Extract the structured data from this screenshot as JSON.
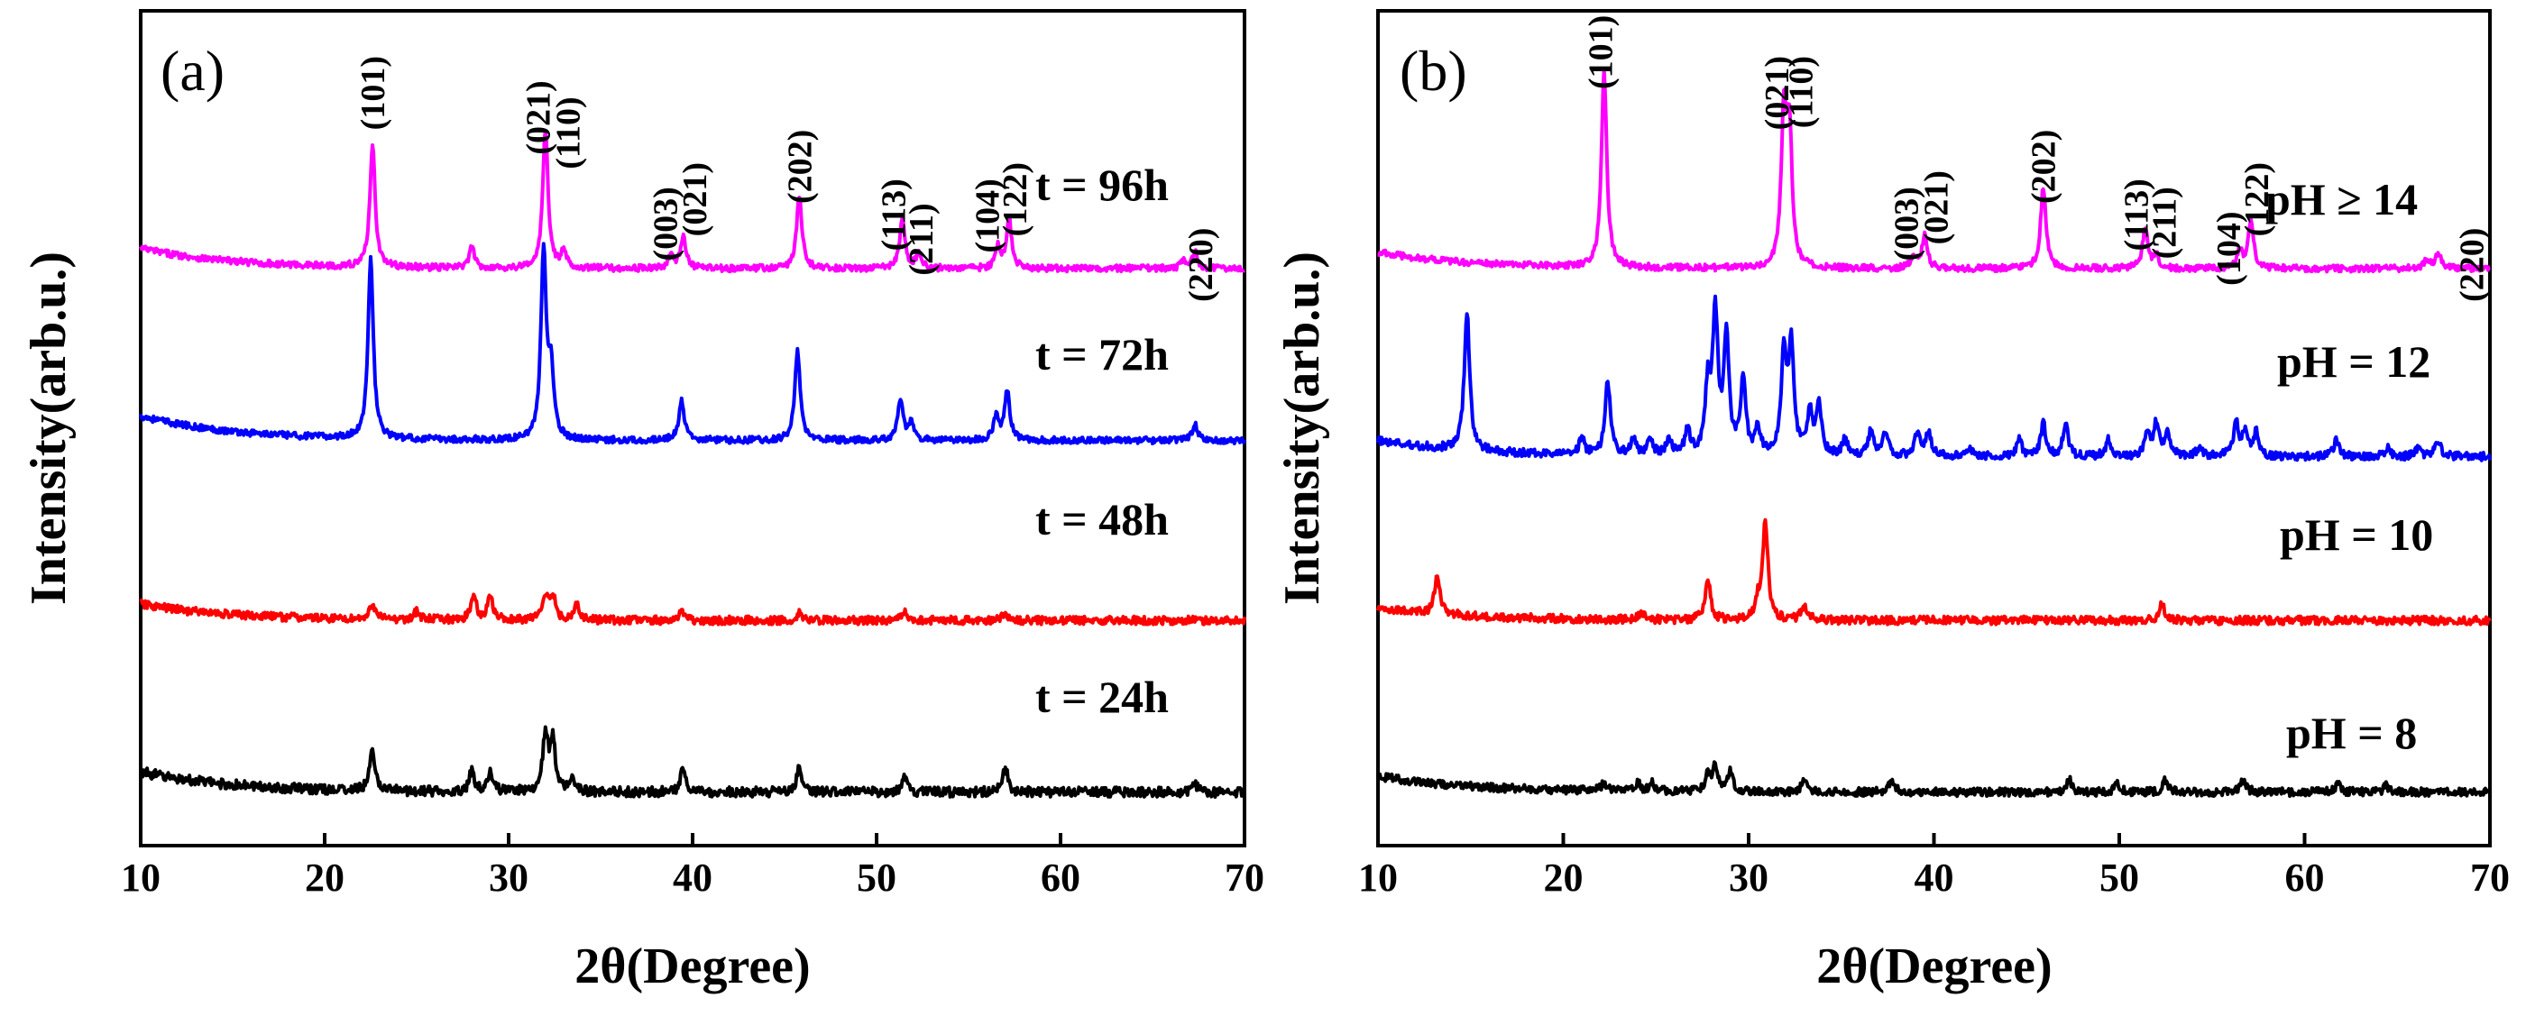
{
  "chart_data": [
    {
      "type": "line",
      "panel_label": "(a)",
      "xlabel": "2θ(Degree)",
      "ylabel": "Intensity(arb.u.)",
      "xlim": [
        10,
        70
      ],
      "ylim": [
        0,
        100
      ],
      "x_ticks": [
        "10",
        "20",
        "30",
        "40",
        "50",
        "60",
        "70"
      ],
      "series": [
        {
          "name": "t = 96h",
          "color": "#ff00ff",
          "baseline": 67,
          "slope": 2.5,
          "noise": 0.4,
          "peaks": [
            [
              22.6,
              15
            ],
            [
              28.0,
              2.5
            ],
            [
              32.0,
              17
            ],
            [
              33.0,
              2
            ],
            [
              38.8,
              1.5
            ],
            [
              39.5,
              4
            ],
            [
              45.8,
              9
            ],
            [
              51.4,
              6
            ],
            [
              52.3,
              2
            ],
            [
              56.6,
              2.5
            ],
            [
              57.2,
              6
            ],
            [
              66.7,
              1
            ],
            [
              67.3,
              2
            ]
          ]
        },
        {
          "name": "t = 72h",
          "color": "#0000ff",
          "baseline": 46,
          "slope": 3,
          "noise": 0.4,
          "peaks": [
            [
              22.5,
              22
            ],
            [
              31.9,
              23
            ],
            [
              32.3,
              8
            ],
            [
              39.4,
              5
            ],
            [
              45.7,
              11
            ],
            [
              51.3,
              5
            ],
            [
              51.9,
              2
            ],
            [
              56.5,
              3
            ],
            [
              57.1,
              6
            ],
            [
              67.3,
              2
            ]
          ]
        },
        {
          "name": "t = 48h",
          "color": "#ff0000",
          "baseline": 24,
          "slope": 2,
          "noise": 0.5,
          "peaks": [
            [
              22.6,
              2
            ],
            [
              25.0,
              1
            ],
            [
              28.1,
              3
            ],
            [
              29.0,
              3
            ],
            [
              32.0,
              3
            ],
            [
              32.4,
              3
            ],
            [
              33.7,
              2
            ],
            [
              39.4,
              1
            ],
            [
              45.8,
              1
            ],
            [
              51.5,
              1
            ],
            [
              57.0,
              1
            ]
          ]
        },
        {
          "name": "t = 24h",
          "color": "#000000",
          "baseline": 3,
          "slope": 2.5,
          "noise": 0.6,
          "peaks": [
            [
              22.6,
              5
            ],
            [
              28.0,
              2.5
            ],
            [
              29.0,
              2.5
            ],
            [
              32.0,
              7
            ],
            [
              32.4,
              6
            ],
            [
              33.5,
              1.5
            ],
            [
              39.5,
              3
            ],
            [
              45.8,
              3
            ],
            [
              51.5,
              2
            ],
            [
              57.0,
              3
            ],
            [
              67.3,
              1
            ]
          ]
        }
      ],
      "series_labels": [
        "t = 96h",
        "t = 72h",
        "t = 48h",
        "t = 24h"
      ],
      "annotations": [
        {
          "text": "(101)",
          "x": 22.6,
          "y": 93
        },
        {
          "text": "(021)",
          "x": 31.6,
          "y": 90
        },
        {
          "text": "(110)",
          "x": 33.2,
          "y": 88
        },
        {
          "text": "(003)",
          "x": 38.5,
          "y": 77
        },
        {
          "text": "(021)",
          "x": 40.1,
          "y": 80
        },
        {
          "text": "(202)",
          "x": 45.8,
          "y": 84
        },
        {
          "text": "(113)",
          "x": 50.9,
          "y": 78
        },
        {
          "text": "(211)",
          "x": 52.4,
          "y": 75
        },
        {
          "text": "(104)",
          "x": 56.0,
          "y": 78
        },
        {
          "text": "(122)",
          "x": 57.5,
          "y": 80
        },
        {
          "text": "(220)",
          "x": 67.6,
          "y": 72
        }
      ]
    },
    {
      "type": "line",
      "panel_label": "(b)",
      "xlabel": "2θ(Degree)",
      "ylabel": "Intensity(arb.u.)",
      "xlim": [
        10,
        70
      ],
      "ylim": [
        0,
        100
      ],
      "x_ticks": [
        "10",
        "20",
        "30",
        "40",
        "50",
        "60",
        "70"
      ],
      "series": [
        {
          "name": "pH ≥ 14",
          "color": "#ff00ff",
          "baseline": 67,
          "slope": 2,
          "noise": 0.4,
          "peaks": [
            [
              22.2,
              24
            ],
            [
              31.9,
              18
            ],
            [
              32.2,
              16
            ],
            [
              38.9,
              1.5
            ],
            [
              39.5,
              4
            ],
            [
              45.9,
              10
            ],
            [
              51.4,
              5
            ],
            [
              52.0,
              1.5
            ],
            [
              56.5,
              2
            ],
            [
              57.1,
              6
            ],
            [
              66.6,
              1
            ],
            [
              67.2,
              2
            ]
          ]
        },
        {
          "name": "pH = 12",
          "color": "#0000ff",
          "baseline": 44,
          "slope": 2,
          "noise": 0.5,
          "peaks": [
            [
              14.8,
              17
            ],
            [
              21.0,
              2
            ],
            [
              22.4,
              9
            ],
            [
              23.8,
              2
            ],
            [
              24.7,
              2
            ],
            [
              25.7,
              2
            ],
            [
              26.7,
              3
            ],
            [
              27.8,
              8
            ],
            [
              28.2,
              17
            ],
            [
              28.8,
              14
            ],
            [
              29.7,
              9
            ],
            [
              30.5,
              3
            ],
            [
              31.9,
              12
            ],
            [
              32.3,
              13
            ],
            [
              33.3,
              5
            ],
            [
              33.8,
              6
            ],
            [
              35.2,
              2
            ],
            [
              36.6,
              3
            ],
            [
              37.4,
              3
            ],
            [
              39.1,
              3
            ],
            [
              39.7,
              3
            ],
            [
              41.9,
              1
            ],
            [
              44.6,
              2
            ],
            [
              45.9,
              4
            ],
            [
              47.1,
              4
            ],
            [
              49.4,
              2
            ],
            [
              51.5,
              3
            ],
            [
              52.0,
              4
            ],
            [
              52.6,
              3
            ],
            [
              54.3,
              1
            ],
            [
              56.3,
              4
            ],
            [
              56.8,
              3
            ],
            [
              57.4,
              3
            ],
            [
              61.7,
              2
            ],
            [
              64.5,
              1
            ],
            [
              66.1,
              1
            ],
            [
              67.2,
              2
            ]
          ]
        },
        {
          "name": "pH = 10",
          "color": "#ff0000",
          "baseline": 24,
          "slope": 1.5,
          "noise": 0.5,
          "peaks": [
            [
              13.2,
              5
            ],
            [
              24.2,
              1
            ],
            [
              27.8,
              5
            ],
            [
              30.5,
              2
            ],
            [
              30.9,
              12
            ],
            [
              33.0,
              2
            ],
            [
              52.3,
              2
            ]
          ]
        },
        {
          "name": "pH = 8",
          "color": "#000000",
          "baseline": 3,
          "slope": 2,
          "noise": 0.5,
          "peaks": [
            [
              22.2,
              1
            ],
            [
              24.0,
              1
            ],
            [
              24.8,
              1
            ],
            [
              27.8,
              2
            ],
            [
              28.2,
              3
            ],
            [
              29.0,
              2.5
            ],
            [
              33.0,
              1.5
            ],
            [
              37.7,
              1.5
            ],
            [
              47.3,
              1.5
            ],
            [
              49.9,
              1
            ],
            [
              52.5,
              1.5
            ],
            [
              56.7,
              1.5
            ],
            [
              61.8,
              1
            ],
            [
              64.4,
              0.8
            ]
          ]
        }
      ],
      "series_labels": [
        "pH ≥ 14",
        "pH = 12",
        "pH = 10",
        "pH = 8"
      ],
      "annotations": [
        {
          "text": "(101)",
          "x": 22.0,
          "y": 98
        },
        {
          "text": "(021)",
          "x": 31.5,
          "y": 93
        },
        {
          "text": "(110)",
          "x": 32.8,
          "y": 93
        },
        {
          "text": "(003)",
          "x": 38.5,
          "y": 77
        },
        {
          "text": "(021)",
          "x": 40.1,
          "y": 79
        },
        {
          "text": "(202)",
          "x": 45.9,
          "y": 84
        },
        {
          "text": "(113)",
          "x": 50.9,
          "y": 78
        },
        {
          "text": "(211)",
          "x": 52.4,
          "y": 77
        },
        {
          "text": "(104)",
          "x": 55.9,
          "y": 74
        },
        {
          "text": "(122)",
          "x": 57.4,
          "y": 80
        },
        {
          "text": "(220)",
          "x": 69.0,
          "y": 72
        }
      ]
    }
  ]
}
